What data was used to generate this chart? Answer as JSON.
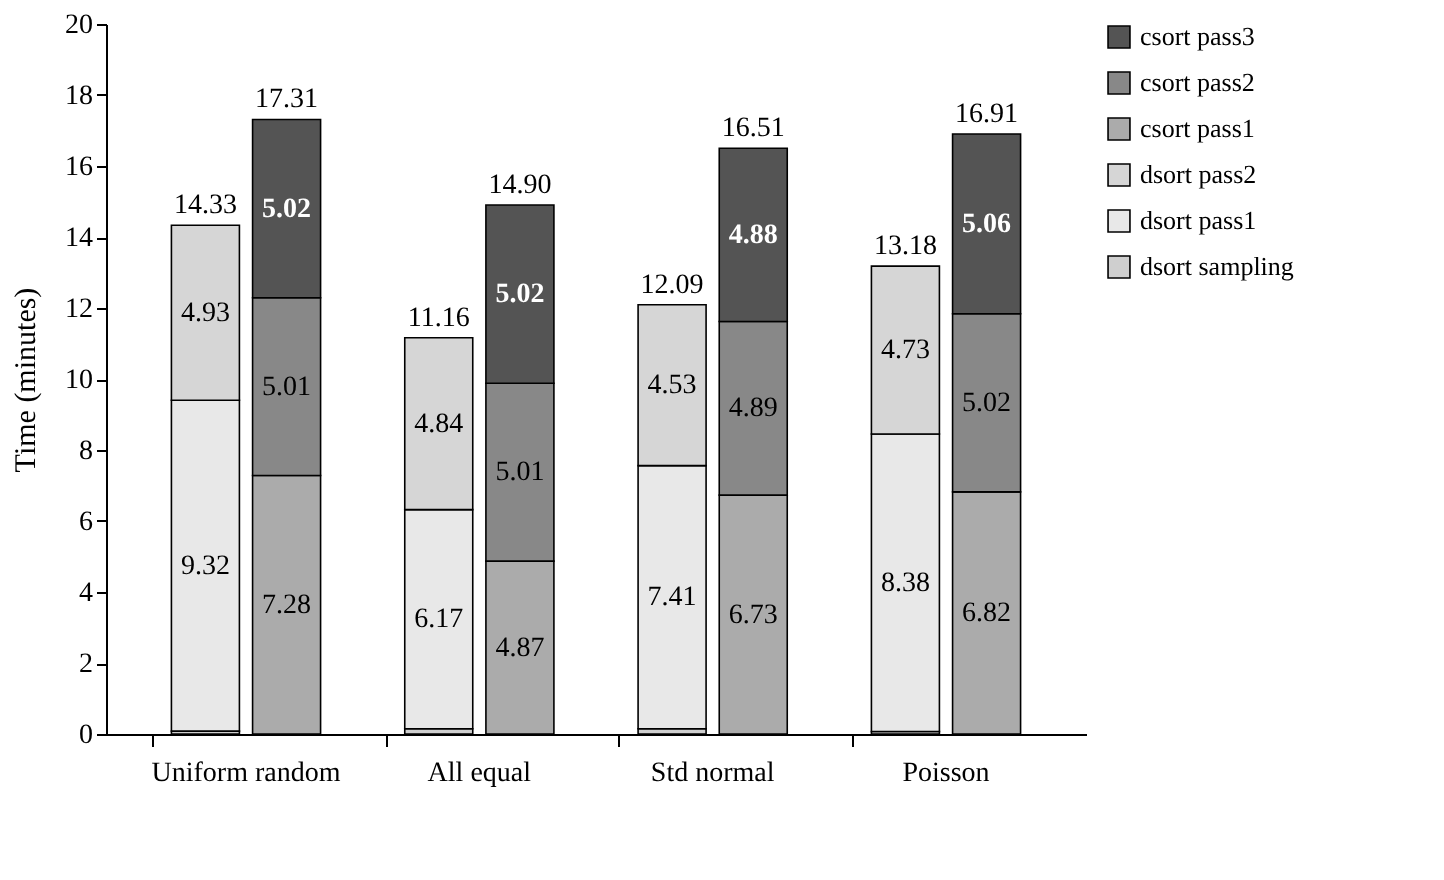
{
  "chart_data": {
    "type": "bar",
    "ylabel": "Time (minutes)",
    "categories": [
      "Uniform random",
      "All equal",
      "Std normal",
      "Poisson"
    ],
    "ylim": [
      0,
      20
    ],
    "yticks": [
      0,
      2,
      4,
      6,
      8,
      10,
      12,
      14,
      16,
      18,
      20
    ],
    "legend": "right",
    "grid": false,
    "series": [
      {
        "name": "dsort sampling",
        "color": "#cfcfcf",
        "values": [
          0.08,
          0.15,
          0.15,
          0.07
        ],
        "base": [
          0,
          0,
          0,
          0
        ],
        "value_labels": [
          null,
          null,
          null,
          null
        ]
      },
      {
        "name": "dsort pass1",
        "color": "#e8e8e8",
        "values": [
          9.32,
          6.17,
          7.41,
          8.38
        ],
        "base": [
          0.08,
          0.15,
          0.15,
          0.07
        ],
        "value_labels": [
          "9.32",
          "6.17",
          "7.41",
          "8.38"
        ]
      },
      {
        "name": "dsort pass2",
        "color": "#d6d6d6",
        "values": [
          4.93,
          4.84,
          4.53,
          4.73
        ],
        "base": [
          9.4,
          6.32,
          7.56,
          8.45
        ],
        "value_labels": [
          "4.93",
          "4.84",
          "4.53",
          "4.73"
        ]
      },
      {
        "name": "csort pass1",
        "color": "#ababab",
        "values": [
          7.28,
          4.87,
          6.73,
          6.82
        ],
        "base": [
          0,
          0,
          0,
          0
        ],
        "value_labels": [
          "7.28",
          "4.87",
          "6.73",
          "6.82"
        ]
      },
      {
        "name": "csort pass2",
        "color": "#888888",
        "values": [
          5.01,
          5.01,
          4.89,
          5.02
        ],
        "base": [
          7.28,
          4.87,
          6.73,
          6.82
        ],
        "value_labels": [
          "5.01",
          "5.01",
          "4.89",
          "5.02"
        ]
      },
      {
        "name": "csort pass3",
        "color": "#545454",
        "values": [
          5.02,
          5.02,
          4.88,
          5.06
        ],
        "base": [
          12.29,
          9.88,
          11.62,
          11.84
        ],
        "value_labels": [
          "5.02",
          "5.02",
          "4.88",
          "5.06"
        ]
      }
    ],
    "annotations": [
      {
        "text": "14.33",
        "x": "Uniform random",
        "y": 14.33
      },
      {
        "text": "11.16",
        "x": "All equal",
        "y": 11.16
      },
      {
        "text": "12.09",
        "x": "Std normal",
        "y": 12.09
      },
      {
        "text": "13.18",
        "x": "Poisson",
        "y": 13.18
      },
      {
        "text": "17.31",
        "x": "Uniform random",
        "y": 17.31
      },
      {
        "text": "14.90",
        "x": "All equal",
        "y": 14.9
      },
      {
        "text": "16.51",
        "x": "Std normal",
        "y": 16.51
      },
      {
        "text": "16.91",
        "x": "Poisson",
        "y": 16.91
      }
    ]
  }
}
